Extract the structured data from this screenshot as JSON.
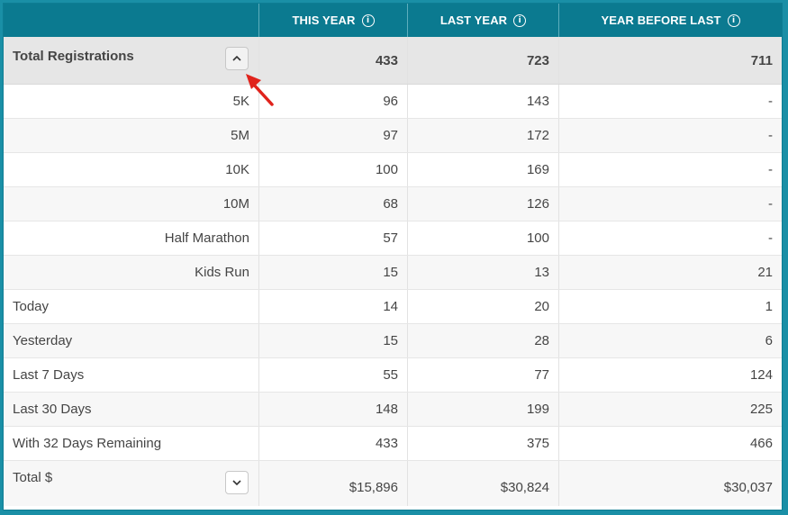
{
  "header": {
    "columns": [
      "",
      "THIS YEAR",
      "LAST YEAR",
      "YEAR BEFORE LAST"
    ],
    "info_glyph": "i"
  },
  "total_registrations": {
    "label": "Total Registrations",
    "values": [
      "433",
      "723",
      "711"
    ],
    "toggle": "collapse"
  },
  "breakdown": [
    {
      "label": "5K",
      "values": [
        "96",
        "143",
        "-"
      ]
    },
    {
      "label": "5M",
      "values": [
        "97",
        "172",
        "-"
      ]
    },
    {
      "label": "10K",
      "values": [
        "100",
        "169",
        "-"
      ]
    },
    {
      "label": "10M",
      "values": [
        "68",
        "126",
        "-"
      ]
    },
    {
      "label": "Half Marathon",
      "values": [
        "57",
        "100",
        "-"
      ]
    },
    {
      "label": "Kids Run",
      "values": [
        "15",
        "13",
        "21"
      ]
    }
  ],
  "periods": [
    {
      "label": "Today",
      "values": [
        "14",
        "20",
        "1"
      ]
    },
    {
      "label": "Yesterday",
      "values": [
        "15",
        "28",
        "6"
      ]
    },
    {
      "label": "Last 7 Days",
      "values": [
        "55",
        "77",
        "124"
      ]
    },
    {
      "label": "Last 30 Days",
      "values": [
        "148",
        "199",
        "225"
      ]
    },
    {
      "label": "With 32 Days Remaining",
      "values": [
        "433",
        "375",
        "466"
      ]
    }
  ],
  "total_dollars": {
    "label": "Total $",
    "values": [
      "$15,896",
      "$30,824",
      "$30,037"
    ],
    "toggle": "expand"
  },
  "colors": {
    "header_bg": "#0b7a90",
    "frame_bg": "#1a8fa6",
    "total_row_bg": "#e6e6e6",
    "annotation_arrow": "#e0231c"
  }
}
